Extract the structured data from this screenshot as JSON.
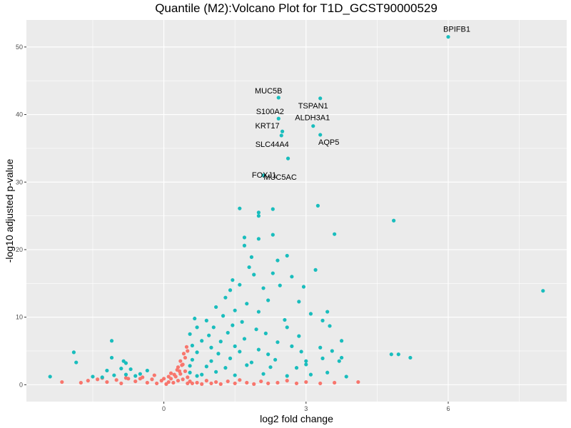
{
  "chart_data": {
    "type": "scatter",
    "title": "Quantile (M2):Volcano Plot for T1D_GCST90000529",
    "xlabel": "log2 fold change",
    "ylabel": "-log10 adjusted p-value",
    "xlim": [
      -2.9,
      8.5
    ],
    "ylim": [
      -2.5,
      54
    ],
    "xticks": [
      0,
      3,
      6
    ],
    "yticks": [
      0,
      10,
      20,
      30,
      40,
      50
    ],
    "grid": true,
    "legend": "none",
    "colors": {
      "significant": "#19BDBD",
      "not_significant": "#F8766D",
      "panel_bg": "#EBEBEB",
      "grid": "#FFFFFF"
    },
    "series": [
      {
        "group": "significant",
        "points": [
          [
            6.0,
            51.5
          ],
          [
            2.42,
            42.5
          ],
          [
            3.3,
            42.4
          ],
          [
            2.42,
            39.4
          ],
          [
            3.15,
            38.3
          ],
          [
            2.5,
            37.5
          ],
          [
            2.48,
            36.9
          ],
          [
            3.3,
            37.0
          ],
          [
            2.62,
            33.5
          ],
          [
            2.1,
            31.0
          ],
          [
            1.6,
            26.1
          ],
          [
            2.3,
            26.0
          ],
          [
            2.0,
            25.5
          ],
          [
            2.0,
            25.0
          ],
          [
            3.25,
            26.5
          ],
          [
            4.85,
            24.3
          ],
          [
            3.6,
            22.3
          ],
          [
            2.3,
            22.2
          ],
          [
            1.7,
            21.8
          ],
          [
            2.0,
            21.6
          ],
          [
            1.7,
            20.6
          ],
          [
            2.6,
            19.1
          ],
          [
            1.85,
            18.9
          ],
          [
            2.4,
            18.4
          ],
          [
            3.2,
            17.0
          ],
          [
            1.8,
            17.4
          ],
          [
            2.3,
            16.5
          ],
          [
            1.45,
            15.5
          ],
          [
            1.9,
            16.3
          ],
          [
            2.7,
            16.0
          ],
          [
            1.6,
            14.8
          ],
          [
            2.95,
            14.5
          ],
          [
            2.1,
            14.3
          ],
          [
            1.4,
            14.0
          ],
          [
            2.45,
            14.7
          ],
          [
            8.0,
            13.9
          ],
          [
            1.3,
            12.9
          ],
          [
            2.2,
            12.5
          ],
          [
            1.75,
            12.0
          ],
          [
            2.85,
            12.3
          ],
          [
            1.1,
            11.5
          ],
          [
            1.5,
            11.0
          ],
          [
            2.0,
            10.8
          ],
          [
            3.45,
            10.8
          ],
          [
            3.1,
            10.5
          ],
          [
            0.65,
            9.8
          ],
          [
            0.9,
            9.5
          ],
          [
            1.25,
            10.2
          ],
          [
            1.65,
            9.3
          ],
          [
            2.55,
            9.6
          ],
          [
            3.35,
            9.5
          ],
          [
            0.7,
            8.5
          ],
          [
            1.05,
            8.5
          ],
          [
            1.45,
            8.8
          ],
          [
            1.95,
            8.2
          ],
          [
            2.6,
            8.5
          ],
          [
            3.5,
            8.7
          ],
          [
            0.55,
            7.5
          ],
          [
            0.95,
            7.3
          ],
          [
            1.35,
            7.7
          ],
          [
            2.15,
            7.6
          ],
          [
            2.85,
            7.2
          ],
          [
            0.8,
            6.5
          ],
          [
            1.2,
            6.4
          ],
          [
            1.7,
            6.8
          ],
          [
            2.4,
            6.3
          ],
          [
            3.75,
            6.5
          ],
          [
            -1.1,
            6.5
          ],
          [
            0.6,
            5.8
          ],
          [
            1.0,
            5.5
          ],
          [
            1.5,
            5.7
          ],
          [
            2.0,
            5.2
          ],
          [
            2.7,
            5.7
          ],
          [
            3.3,
            5.5
          ],
          [
            0.7,
            4.8
          ],
          [
            1.15,
            4.6
          ],
          [
            1.6,
            4.9
          ],
          [
            2.2,
            4.5
          ],
          [
            2.9,
            4.9
          ],
          [
            3.55,
            5.0
          ],
          [
            4.95,
            4.5
          ],
          [
            5.2,
            4.0
          ],
          [
            4.8,
            4.5
          ],
          [
            3.75,
            4.0
          ],
          [
            3.7,
            3.5
          ],
          [
            -1.9,
            4.8
          ],
          [
            -1.85,
            3.3
          ],
          [
            -1.1,
            4.0
          ],
          [
            -0.85,
            3.5
          ],
          [
            -0.8,
            3.2
          ],
          [
            0.6,
            3.7
          ],
          [
            1.0,
            3.5
          ],
          [
            1.4,
            3.9
          ],
          [
            1.85,
            3.3
          ],
          [
            2.35,
            3.7
          ],
          [
            3.0,
            3.5
          ],
          [
            3.35,
            3.9
          ],
          [
            0.55,
            2.8
          ],
          [
            0.9,
            2.7
          ],
          [
            1.3,
            2.5
          ],
          [
            1.75,
            2.9
          ],
          [
            2.25,
            2.6
          ],
          [
            2.8,
            2.5
          ],
          [
            3.0,
            3.0
          ],
          [
            3.45,
            1.8
          ],
          [
            3.85,
            1.2
          ],
          [
            -2.4,
            1.2
          ],
          [
            -1.3,
            1.1
          ],
          [
            -1.05,
            1.4
          ],
          [
            -0.8,
            1.5
          ],
          [
            -0.5,
            1.6
          ],
          [
            -0.7,
            2.3
          ],
          [
            -0.35,
            2.1
          ],
          [
            0.55,
            1.8
          ],
          [
            0.8,
            1.5
          ],
          [
            1.1,
            1.9
          ],
          [
            1.5,
            1.4
          ],
          [
            2.1,
            1.6
          ],
          [
            2.6,
            1.3
          ],
          [
            3.1,
            1.5
          ],
          [
            -1.2,
            2.1
          ],
          [
            -0.9,
            2.4
          ],
          [
            -0.6,
            1.3
          ],
          [
            -1.5,
            1.2
          ],
          [
            0.7,
            1.3
          ]
        ]
      },
      {
        "group": "not_significant",
        "points": [
          [
            -2.15,
            0.4
          ],
          [
            -1.75,
            0.3
          ],
          [
            -1.4,
            0.8
          ],
          [
            -1.3,
            1.0
          ],
          [
            -1.0,
            0.7
          ],
          [
            -0.9,
            0.2
          ],
          [
            -0.75,
            0.9
          ],
          [
            -0.6,
            0.5
          ],
          [
            -0.45,
            1.1
          ],
          [
            -0.35,
            0.3
          ],
          [
            -0.25,
            0.8
          ],
          [
            -0.15,
            0.2
          ],
          [
            -0.05,
            0.6
          ],
          [
            0.05,
            0.1
          ],
          [
            0.1,
            0.4
          ],
          [
            0.15,
            0.9
          ],
          [
            0.2,
            0.3
          ],
          [
            0.25,
            1.2
          ],
          [
            0.3,
            0.6
          ],
          [
            0.35,
            1.6
          ],
          [
            0.4,
            0.8
          ],
          [
            0.45,
            2.0
          ],
          [
            0.5,
            1.1
          ],
          [
            0.5,
            0.2
          ],
          [
            0.55,
            0.5
          ],
          [
            0.6,
            0.2
          ],
          [
            0.7,
            0.3
          ],
          [
            0.8,
            0.1
          ],
          [
            0.9,
            0.6
          ],
          [
            1.0,
            0.2
          ],
          [
            1.1,
            0.4
          ],
          [
            1.2,
            0.1
          ],
          [
            1.35,
            0.5
          ],
          [
            1.5,
            0.2
          ],
          [
            1.6,
            0.7
          ],
          [
            1.75,
            0.3
          ],
          [
            1.9,
            0.1
          ],
          [
            2.05,
            0.5
          ],
          [
            2.2,
            0.2
          ],
          [
            2.4,
            0.3
          ],
          [
            2.6,
            0.6
          ],
          [
            2.8,
            0.2
          ],
          [
            3.0,
            0.4
          ],
          [
            3.3,
            0.2
          ],
          [
            3.6,
            0.3
          ],
          [
            4.1,
            0.4
          ],
          [
            0.3,
            2.6
          ],
          [
            0.4,
            3.0
          ],
          [
            0.45,
            4.0
          ],
          [
            0.5,
            5.0
          ],
          [
            0.35,
            3.5
          ],
          [
            0.42,
            4.6
          ],
          [
            0.28,
            2.2
          ],
          [
            0.22,
            1.5
          ],
          [
            0.48,
            5.6
          ],
          [
            0.38,
            2.9
          ],
          [
            -0.5,
            0.9
          ],
          [
            -0.2,
            1.4
          ],
          [
            0.1,
            1.2
          ],
          [
            0.15,
            1.7
          ],
          [
            -1.6,
            0.6
          ],
          [
            -1.2,
            0.4
          ],
          [
            -0.8,
            1.0
          ],
          [
            0.0,
            0.9
          ],
          [
            0.33,
            2.0
          ]
        ]
      }
    ],
    "annotations": [
      {
        "text": "BPIFB1",
        "x": 6.0,
        "y": 51.5
      },
      {
        "text": "MUC5B",
        "x": 2.42,
        "y": 42.5
      },
      {
        "text": "TSPAN1",
        "x": 3.3,
        "y": 42.4
      },
      {
        "text": "S100A2",
        "x": 2.42,
        "y": 39.4
      },
      {
        "text": "ALDH3A1",
        "x": 3.15,
        "y": 38.3
      },
      {
        "text": "KRT17",
        "x": 2.5,
        "y": 37.5
      },
      {
        "text": "AQP5",
        "x": 3.3,
        "y": 37.0
      },
      {
        "text": "SLC44A4",
        "x": 2.48,
        "y": 36.9
      },
      {
        "text": "MUC5AC",
        "x": 2.62,
        "y": 33.5
      },
      {
        "text": "FOXJ1",
        "x": 2.1,
        "y": 31.0
      }
    ]
  }
}
